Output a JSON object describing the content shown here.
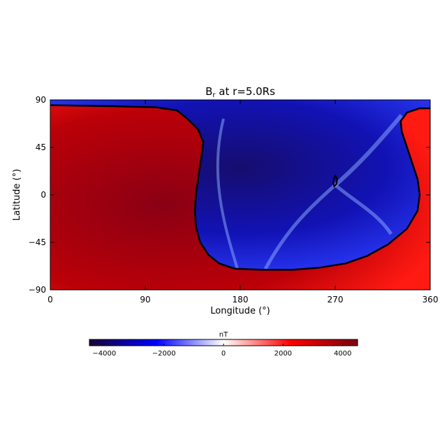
{
  "chart_data": {
    "type": "heatmap",
    "title": "B",
    "title_subscript": "r",
    "title_suffix": " at r=5.0Rs",
    "xlabel": "Longitude (°)",
    "ylabel": "Latitude (°)",
    "xlim": [
      0,
      360
    ],
    "ylim": [
      -90,
      90
    ],
    "x_ticks": [
      0,
      90,
      180,
      270,
      360
    ],
    "y_ticks": [
      90,
      45,
      0,
      -45,
      -90
    ],
    "y_tick_labels": [
      "90",
      "45",
      "0",
      "−45",
      "−90"
    ],
    "colorbar": {
      "label": "nT",
      "range": [
        -4500,
        4500
      ],
      "ticks": [
        -4000,
        -2000,
        0,
        2000,
        4000
      ],
      "tick_labels": [
        "−4000",
        "−2000",
        "0",
        "2000",
        "4000"
      ],
      "colormap": [
        "#1a0033",
        "#0000ff",
        "#ffffff",
        "#ff0000",
        "#7a0010"
      ]
    },
    "polarity_inversion_line": [
      [
        0,
        85
      ],
      [
        60,
        84
      ],
      [
        100,
        83
      ],
      [
        120,
        80
      ],
      [
        130,
        72
      ],
      [
        140,
        62
      ],
      [
        145,
        50
      ],
      [
        143,
        35
      ],
      [
        140,
        15
      ],
      [
        138,
        0
      ],
      [
        137,
        -15
      ],
      [
        138,
        -30
      ],
      [
        142,
        -45
      ],
      [
        150,
        -57
      ],
      [
        160,
        -65
      ],
      [
        175,
        -70
      ],
      [
        200,
        -71
      ],
      [
        230,
        -71
      ],
      [
        255,
        -69
      ],
      [
        280,
        -65
      ],
      [
        300,
        -58
      ],
      [
        320,
        -47
      ],
      [
        338,
        -32
      ],
      [
        348,
        -15
      ],
      [
        350,
        0
      ],
      [
        348,
        15
      ],
      [
        343,
        30
      ],
      [
        338,
        45
      ],
      [
        333,
        60
      ],
      [
        332,
        70
      ],
      [
        338,
        78
      ],
      [
        350,
        82
      ],
      [
        360,
        82
      ]
    ],
    "closed_contour": [
      [
        270,
        18
      ],
      [
        272,
        15
      ],
      [
        271,
        10
      ],
      [
        269,
        8
      ],
      [
        268,
        12
      ],
      [
        269,
        16
      ]
    ]
  }
}
